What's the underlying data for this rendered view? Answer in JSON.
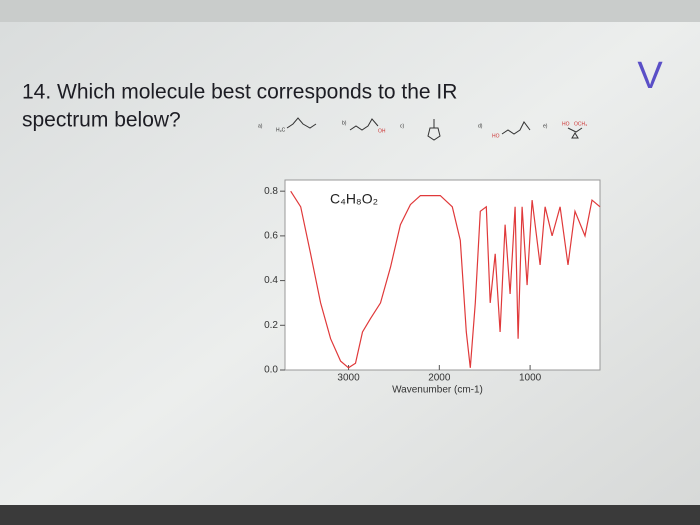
{
  "question": [
    "14. Which molecule best corresponds to the IR",
    "spectrum below?"
  ],
  "logo": "V",
  "options": [
    "a)",
    "b)",
    "c)",
    "d)",
    "e)"
  ],
  "chart_data": {
    "type": "line",
    "formula": "C₄H₈O₂",
    "x_label": "Wavenumber (cm-1)",
    "x": [
      3637,
      3527,
      3418,
      3308,
      3198,
      3088,
      3000,
      2923,
      2846,
      2758,
      2648,
      2538,
      2429,
      2319,
      2209,
      1989,
      1857,
      1769,
      1703,
      1659,
      1604,
      1549,
      1483,
      1440,
      1385,
      1330,
      1275,
      1220,
      1165,
      1132,
      1088,
      1033,
      978,
      890,
      835,
      758,
      670,
      582,
      505,
      395,
      318,
      230
    ],
    "values": [
      0.8,
      0.73,
      0.52,
      0.3,
      0.14,
      0.04,
      0.01,
      0.03,
      0.17,
      0.23,
      0.3,
      0.46,
      0.65,
      0.74,
      0.78,
      0.78,
      0.73,
      0.58,
      0.17,
      0.01,
      0.3,
      0.71,
      0.73,
      0.3,
      0.52,
      0.17,
      0.65,
      0.34,
      0.73,
      0.14,
      0.73,
      0.38,
      0.76,
      0.47,
      0.73,
      0.6,
      0.73,
      0.47,
      0.71,
      0.6,
      0.76,
      0.73
    ],
    "color": "#e0393a",
    "xlim": [
      3700,
      230
    ],
    "xticks": [
      3000,
      2000,
      1000
    ],
    "ylim": [
      0,
      0.85
    ],
    "yticks": [
      {
        "value": 0,
        "label": "0.0"
      },
      0.2,
      0.4,
      0.6,
      0.8
    ]
  }
}
